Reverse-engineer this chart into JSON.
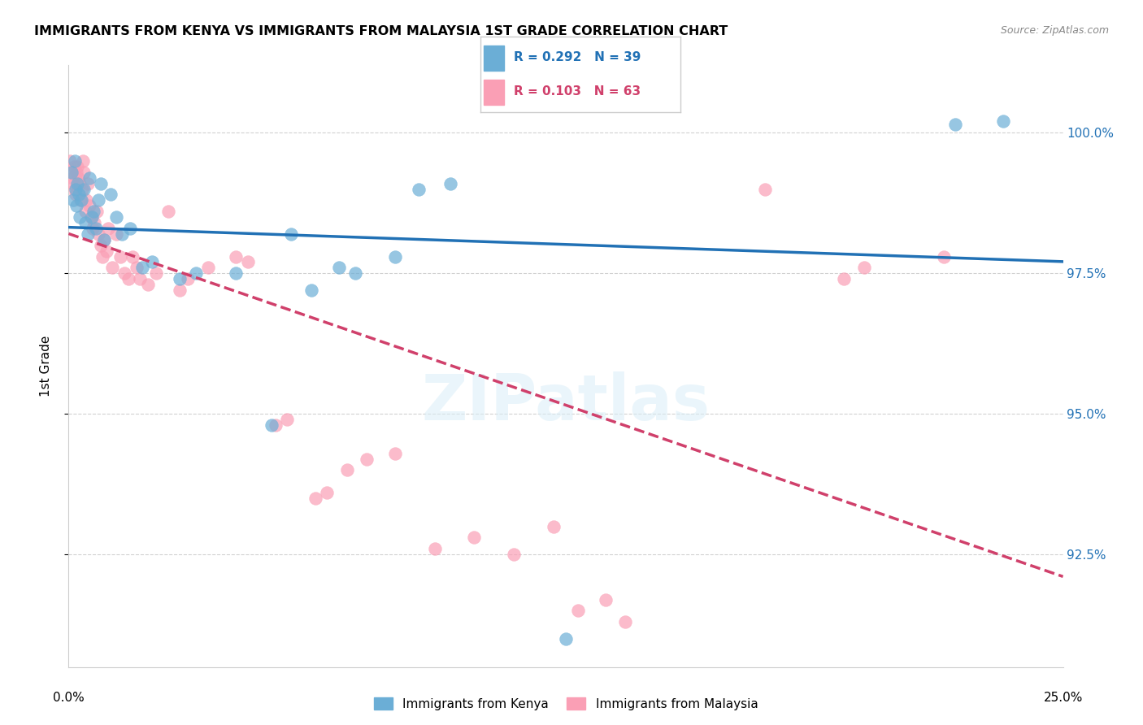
{
  "title": "IMMIGRANTS FROM KENYA VS IMMIGRANTS FROM MALAYSIA 1ST GRADE CORRELATION CHART",
  "source": "Source: ZipAtlas.com",
  "ylabel": "1st Grade",
  "y_ticks": [
    92.5,
    95.0,
    97.5,
    100.0
  ],
  "y_tick_labels": [
    "92.5%",
    "95.0%",
    "97.5%",
    "100.0%"
  ],
  "xlim": [
    0.0,
    25.0
  ],
  "ylim": [
    90.5,
    101.2
  ],
  "legend_r_kenya": "R = 0.292",
  "legend_n_kenya": "N = 39",
  "legend_r_malaysia": "R = 0.103",
  "legend_n_malaysia": "N = 63",
  "kenya_color": "#6baed6",
  "malaysia_color": "#fa9fb5",
  "kenya_line_color": "#2171b5",
  "malaysia_line_color": "#d0406b",
  "kenya_x": [
    0.08,
    0.12,
    0.15,
    0.18,
    0.2,
    0.22,
    0.25,
    0.28,
    0.32,
    0.38,
    0.42,
    0.48,
    0.52,
    0.58,
    0.62,
    0.68,
    0.75,
    0.82,
    0.9,
    1.05,
    1.2,
    1.35,
    1.55,
    1.85,
    2.1,
    2.8,
    3.2,
    4.2,
    5.1,
    5.6,
    6.1,
    6.8,
    7.2,
    8.2,
    8.8,
    9.6,
    12.5,
    22.3,
    23.5
  ],
  "kenya_y": [
    99.3,
    98.8,
    99.5,
    99.0,
    98.7,
    99.1,
    98.9,
    98.5,
    98.8,
    99.0,
    98.4,
    98.2,
    99.2,
    98.5,
    98.6,
    98.3,
    98.8,
    99.1,
    98.1,
    98.9,
    98.5,
    98.2,
    98.3,
    97.6,
    97.7,
    97.4,
    97.5,
    97.5,
    94.8,
    98.2,
    97.2,
    97.6,
    97.5,
    97.8,
    99.0,
    99.1,
    91.0,
    100.15,
    100.2
  ],
  "malaysia_x": [
    0.04,
    0.07,
    0.09,
    0.11,
    0.13,
    0.15,
    0.17,
    0.19,
    0.21,
    0.24,
    0.27,
    0.3,
    0.33,
    0.36,
    0.39,
    0.42,
    0.45,
    0.48,
    0.52,
    0.56,
    0.6,
    0.65,
    0.7,
    0.75,
    0.8,
    0.85,
    0.9,
    0.95,
    1.0,
    1.1,
    1.2,
    1.3,
    1.4,
    1.5,
    1.6,
    1.7,
    1.8,
    2.0,
    2.2,
    2.5,
    2.8,
    3.0,
    3.5,
    4.2,
    4.5,
    5.2,
    5.5,
    6.2,
    6.5,
    7.0,
    7.5,
    8.2,
    9.2,
    10.2,
    11.2,
    12.2,
    12.8,
    13.5,
    14.0,
    17.5,
    19.5,
    20.0,
    22.0
  ],
  "malaysia_y": [
    99.5,
    99.3,
    99.2,
    99.1,
    99.4,
    99.0,
    98.9,
    99.3,
    99.4,
    99.2,
    99.1,
    98.8,
    99.0,
    99.5,
    99.3,
    98.6,
    98.8,
    99.1,
    98.7,
    98.5,
    98.3,
    98.4,
    98.6,
    98.2,
    98.0,
    97.8,
    98.1,
    97.9,
    98.3,
    97.6,
    98.2,
    97.8,
    97.5,
    97.4,
    97.8,
    97.6,
    97.4,
    97.3,
    97.5,
    98.6,
    97.2,
    97.4,
    97.6,
    97.8,
    97.7,
    94.8,
    94.9,
    93.5,
    93.6,
    94.0,
    94.2,
    94.3,
    92.6,
    92.8,
    92.5,
    93.0,
    91.5,
    91.7,
    91.3,
    99.0,
    97.4,
    97.6,
    97.8
  ]
}
